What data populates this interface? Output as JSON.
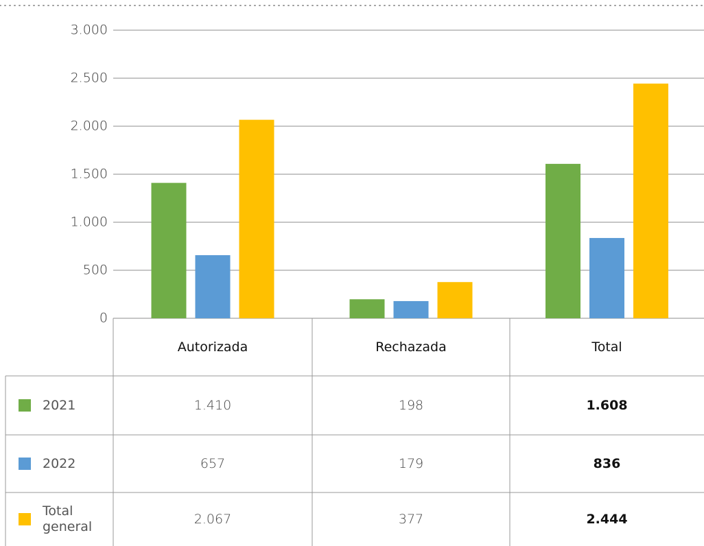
{
  "chart_data": {
    "type": "bar",
    "categories": [
      "Autorizada",
      "Rechazada",
      "Total"
    ],
    "series": [
      {
        "name": "2021",
        "color": "#70ad47",
        "values": [
          1410,
          198,
          1608
        ],
        "value_labels": [
          "1.410",
          "198",
          "1.608"
        ]
      },
      {
        "name": "2022",
        "color": "#5b9bd5",
        "values": [
          657,
          179,
          836
        ],
        "value_labels": [
          "657",
          "179",
          "836"
        ]
      },
      {
        "name": "Total general",
        "color": "#ffc000",
        "values": [
          2067,
          377,
          2444
        ],
        "value_labels": [
          "2.067",
          "377",
          "2.444"
        ]
      }
    ],
    "ylim": [
      0,
      3000
    ],
    "yticks": [
      0,
      500,
      {
        "value": 1000,
        "label": "1.000"
      },
      {
        "value": 1500,
        "label": "1.500"
      },
      {
        "value": 2000,
        "label": "2.000"
      },
      {
        "value": 2500,
        "label": "2.500"
      },
      {
        "value": 3000,
        "label": "3.000"
      }
    ],
    "grid": true
  }
}
